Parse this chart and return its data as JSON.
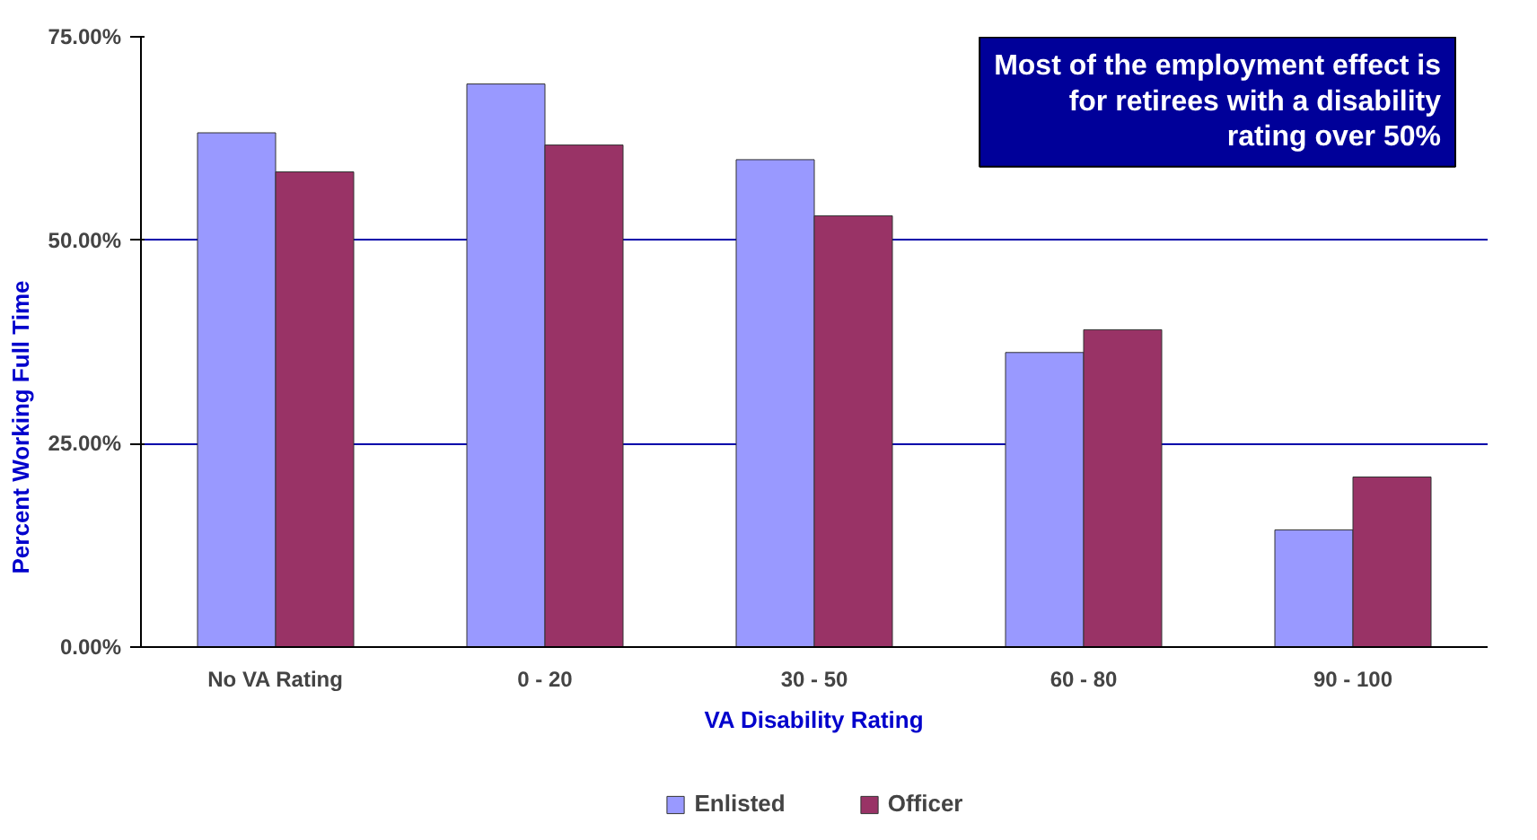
{
  "chart_data": {
    "type": "bar",
    "xlabel": "VA Disability Rating",
    "ylabel": "Percent Working Full Time",
    "categories": [
      "No VA Rating",
      "0 - 20",
      "30 - 50",
      "60 - 80",
      "90 - 100"
    ],
    "series": [
      {
        "name": "Enlisted",
        "color": "#9999ff",
        "values": [
          63.2,
          69.2,
          59.9,
          36.2,
          14.4
        ]
      },
      {
        "name": "Officer",
        "color": "#993366",
        "values": [
          58.4,
          61.7,
          53.0,
          39.0,
          20.9
        ]
      }
    ],
    "ylim": [
      0,
      75
    ],
    "yticks": [
      {
        "value": 0,
        "label": "0.00%"
      },
      {
        "value": 25,
        "label": "25.00%"
      },
      {
        "value": 50,
        "label": "50.00%"
      },
      {
        "value": 75,
        "label": "75.00%"
      }
    ],
    "grid": "y",
    "legend": "bottom",
    "annotations": [
      "Most of the employment effect is for retirees with a disability rating over 50%"
    ]
  }
}
